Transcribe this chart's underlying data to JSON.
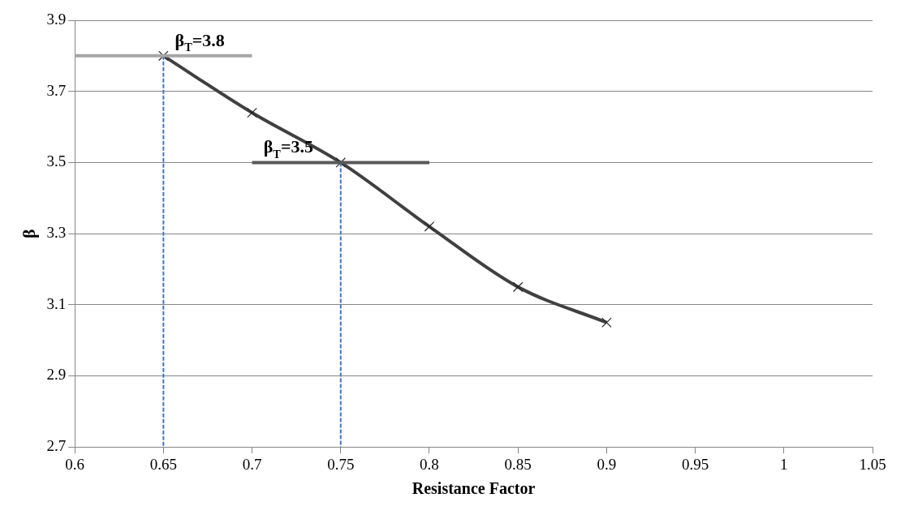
{
  "chart_data": {
    "type": "line",
    "xlabel": "Resistance Factor",
    "ylabel": "β",
    "xlim": [
      0.6,
      1.05
    ],
    "xticks": [
      0.6,
      0.65,
      0.7,
      0.75,
      0.8,
      0.85,
      0.9,
      0.95,
      1,
      1.05
    ],
    "ylim": [
      2.7,
      3.9
    ],
    "yticks": [
      2.7,
      2.9,
      3.1,
      3.3,
      3.5,
      3.7,
      3.9
    ],
    "grid": "y",
    "legend": false,
    "series": [
      {
        "x": [
          0.6,
          0.7
        ],
        "values": [
          3.8,
          3.8
        ],
        "color": "#a6a6a6",
        "marker": "none",
        "line_style": "solid"
      },
      {
        "x": [
          0.7,
          0.8
        ],
        "values": [
          3.5,
          3.5
        ],
        "color": "#595959",
        "marker": "none",
        "line_style": "solid"
      },
      {
        "x": [
          0.65,
          0.65
        ],
        "values": [
          3.8,
          2.7
        ],
        "color": "#4472c4",
        "line_style": "dashed"
      },
      {
        "x": [
          0.75,
          0.75
        ],
        "values": [
          3.5,
          2.7
        ],
        "color": "#4472c4",
        "line_style": "dashed"
      },
      {
        "x": [
          0.65,
          0.7,
          0.75,
          0.8,
          0.85,
          0.9
        ],
        "values": [
          3.8,
          3.64,
          3.5,
          3.32,
          3.15,
          3.05
        ],
        "color": "#404040",
        "marker": "cross",
        "line_style": "solid"
      }
    ],
    "annotations": [
      {
        "text": "β$_{T}$=3.8",
        "x": 0.7,
        "y": 3.8
      },
      {
        "text": "β$_{T}$=3.5",
        "x": 0.75,
        "y": 3.5
      }
    ]
  }
}
